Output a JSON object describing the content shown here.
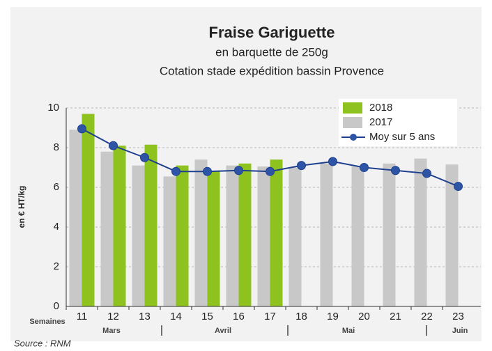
{
  "chart_data": {
    "type": "bar",
    "title": "Fraise Gariguette",
    "subtitle": "en barquette de 250g",
    "subtitle2": "Cotation stade expédition bassin Provence",
    "ylabel": "en € HT/kg",
    "xlabel": "Semaines",
    "months": [
      "Mars",
      "Avril",
      "Mai",
      "Juin"
    ],
    "source": "Source : RNM",
    "categories": [
      "11",
      "12",
      "13",
      "14",
      "15",
      "16",
      "17",
      "18",
      "19",
      "20",
      "21",
      "22",
      "23"
    ],
    "series": [
      {
        "name": "2018",
        "color": "#8dc21f",
        "type": "bar",
        "values": [
          9.7,
          8.1,
          8.15,
          7.1,
          6.8,
          7.2,
          7.4,
          null,
          null,
          null,
          null,
          null,
          null
        ]
      },
      {
        "name": "2017",
        "color": "#c8c8c8",
        "type": "bar",
        "values": [
          8.9,
          7.8,
          7.1,
          6.55,
          7.4,
          7.1,
          7.05,
          7.0,
          7.2,
          7.05,
          7.2,
          7.45,
          7.15
        ]
      },
      {
        "name": "Moy sur 5 ans",
        "color": "#1f3f8f",
        "type": "line",
        "values": [
          8.95,
          8.1,
          7.5,
          6.8,
          6.8,
          6.85,
          6.8,
          7.1,
          7.3,
          7.0,
          6.85,
          6.7,
          6.05
        ]
      }
    ],
    "ylim": [
      0,
      10
    ],
    "yticks": [
      0,
      2,
      4,
      6,
      8,
      10
    ],
    "grid": true,
    "legend": "top-right"
  }
}
